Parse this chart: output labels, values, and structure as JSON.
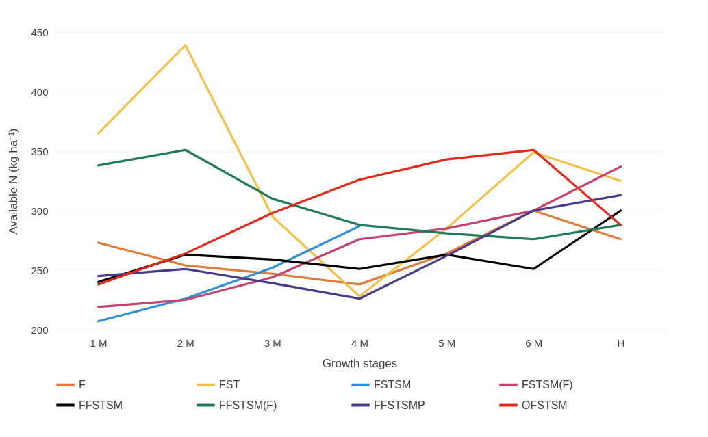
{
  "chart_data": {
    "type": "line",
    "xlabel": "Growth stages",
    "ylabel": "Available N  (kg ha⁻¹)",
    "categories": [
      "1 M",
      "2 M",
      "3 M",
      "4 M",
      "5 M",
      "6 M",
      "H"
    ],
    "series": [
      {
        "name": "F",
        "color": "#e07b39",
        "values": [
          273,
          254,
          247,
          238,
          264,
          300,
          276
        ]
      },
      {
        "name": "FST",
        "color": "#f5c04a",
        "values": [
          365,
          439,
          295,
          228,
          285,
          349,
          325
        ]
      },
      {
        "name": "FSTSM",
        "color": "#2f8fd8",
        "values": [
          207,
          226,
          252,
          287,
          null,
          null,
          null
        ]
      },
      {
        "name": "FSTSM(F)",
        "color": "#c8426e",
        "values": [
          219,
          225,
          244,
          276,
          285,
          300,
          337
        ]
      },
      {
        "name": "FFSTSM",
        "color": "#000000",
        "values": [
          240,
          263,
          259,
          251,
          263,
          251,
          300
        ]
      },
      {
        "name": "FFSTSM(F)",
        "color": "#1e7b5a",
        "values": [
          338,
          351,
          310,
          288,
          281,
          276,
          288
        ]
      },
      {
        "name": "FFSTSMP",
        "color": "#4b3a8c",
        "values": [
          245,
          251,
          239,
          226,
          262,
          300,
          313
        ]
      },
      {
        "name": "OFSTSM",
        "color": "#e02b1a",
        "values": [
          238,
          264,
          298,
          326,
          343,
          351,
          288
        ]
      }
    ],
    "ylim": [
      200,
      450
    ],
    "yticks": [
      200,
      250,
      300,
      350,
      400,
      450
    ],
    "grid": "y",
    "legend": "bottom",
    "marker": "none",
    "line_style": "solid"
  }
}
